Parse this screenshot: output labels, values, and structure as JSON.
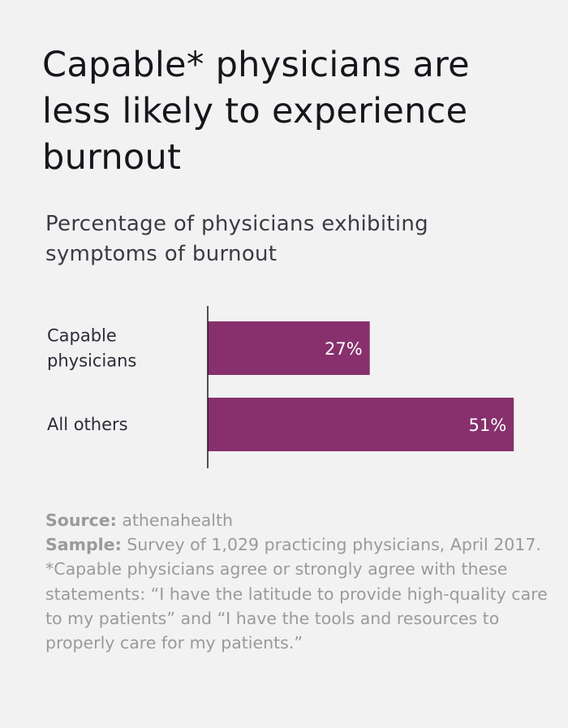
{
  "title": "Capable* physicians are less likely to experience burnout",
  "subtitle": "Percentage of physicians exhibiting symptoms of burnout",
  "colors": {
    "bar": "#87306d",
    "background": "#f2f2f2",
    "axis": "#1a1a1a",
    "label_text": "#2c2c38",
    "bar_label_text": "#ffffff"
  },
  "chart_data": {
    "type": "bar",
    "orientation": "horizontal",
    "categories": [
      "Capable physicians",
      "All others"
    ],
    "category_lines": [
      [
        "Capable",
        "physicians"
      ],
      [
        "All others"
      ]
    ],
    "values": [
      27,
      51
    ],
    "value_labels": [
      "27%",
      "51%"
    ],
    "xlim": [
      0,
      53
    ],
    "grid": false,
    "legend": "none"
  },
  "footnote": {
    "source_label": "Source:",
    "source_text": " athenahealth",
    "sample_label": "Sample:",
    "sample_text": " Survey of 1,029 practicing physicians, April 2017.",
    "note": "*Capable physicians agree or strongly agree with these statements: “I have the latitude to provide high-quality care to my patients” and “I have the tools and resources to properly care for my patients.”"
  }
}
